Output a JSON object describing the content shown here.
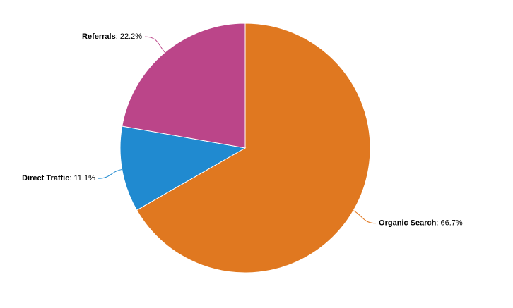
{
  "chart_data": {
    "type": "pie",
    "categories": [
      "Organic Search",
      "Direct Traffic",
      "Referrals"
    ],
    "values": [
      66.7,
      11.1,
      22.2
    ],
    "value_labels": [
      ": 66.7%",
      ": 11.1%",
      ": 22.2%"
    ],
    "colors": [
      "#e07820",
      "#208ad0",
      "#bb4589"
    ]
  }
}
